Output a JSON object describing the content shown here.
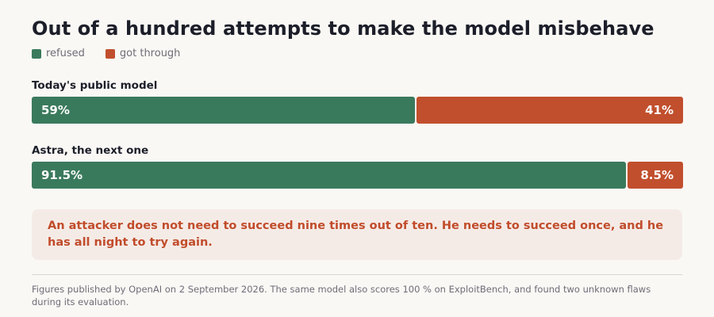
{
  "colors": {
    "refused": "#3a7a5c",
    "through": "#c14f2d",
    "callout_bg": "#f5ebe6",
    "callout_text": "#c14c2b",
    "background": "#f9f8f5"
  },
  "chart_data": {
    "type": "bar",
    "orientation": "horizontal",
    "stacked": true,
    "title": "Out of a hundred attempts to make the model misbehave",
    "categories": [
      "Today's public model",
      "Astra, the next one"
    ],
    "series": [
      {
        "name": "refused",
        "values": [
          59,
          91.5
        ],
        "labels": [
          "59%",
          "91.5%"
        ],
        "color": "#3a7a5c"
      },
      {
        "name": "got through",
        "values": [
          41,
          8.5
        ],
        "labels": [
          "41%",
          "8.5%"
        ],
        "color": "#c14f2d"
      }
    ],
    "xlim": [
      0,
      100
    ],
    "legend_position": "top-left",
    "grid": false
  },
  "callout": {
    "text": "An attacker does not need to succeed nine times out of ten. He needs to succeed once, and he has all night to try again."
  },
  "footnote": {
    "text": "Figures published by OpenAI on 2 September 2026. The same model also scores 100 % on ExploitBench, and found two unknown flaws during its evaluation."
  }
}
